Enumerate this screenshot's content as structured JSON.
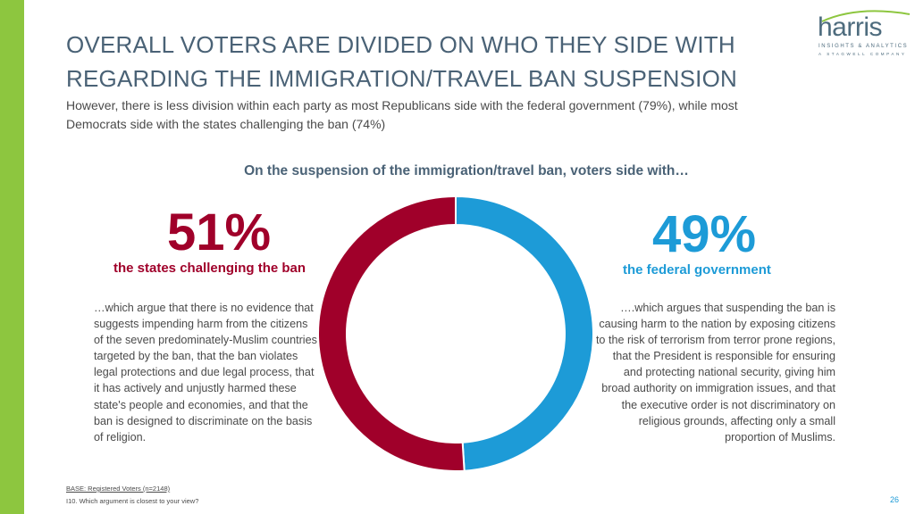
{
  "colors": {
    "accent_green": "#8dc63f",
    "democrat_red": "#a0002a",
    "republican_blue": "#1d9bd7",
    "title_slate": "#4a6276"
  },
  "header": {
    "title": "OVERALL VOTERS ARE DIVIDED ON WHO THEY SIDE WITH REGARDING THE IMMIGRATION/TRAVEL BAN SUSPENSION",
    "subtitle": "However, there is less division within each party as most Republicans side with the federal government (79%), while most Democrats side with the states challenging the ban (74%)"
  },
  "logo": {
    "word": "harris",
    "line1": "INSIGHTS & ANALYTICS",
    "line2": "A STAGWELL COMPANY"
  },
  "chart_data": {
    "type": "pie",
    "donut": true,
    "title": "On the suspension of the immigration/travel ban, voters side with…",
    "categories": [
      "the states challenging the ban",
      "the federal government"
    ],
    "values": [
      51,
      49
    ],
    "value_labels": [
      "51%",
      "49%"
    ],
    "colors": [
      "#a0002a",
      "#1d9bd7"
    ]
  },
  "left": {
    "description": "…which argue that there is no evidence that suggests impending harm from the citizens of the seven predominately-Muslim countries targeted by the ban, that the ban violates legal protections and due legal process, that it has actively and unjustly harmed these state's people and economies, and that the ban is designed to discriminate on the basis of religion."
  },
  "right": {
    "description": "….which argues that suspending the ban is causing harm to the nation by exposing citizens to the risk of terrorism from terror prone regions, that the President is responsible for ensuring and protecting national security, giving him broad authority on immigration issues, and that the executive order is not discriminatory on religious grounds, affecting only a small proportion of Muslims."
  },
  "footer": {
    "base": "BASE: Registered Voters (n=2148)",
    "question": "I10. Which argument is closest to your view?",
    "page_number": "26"
  }
}
